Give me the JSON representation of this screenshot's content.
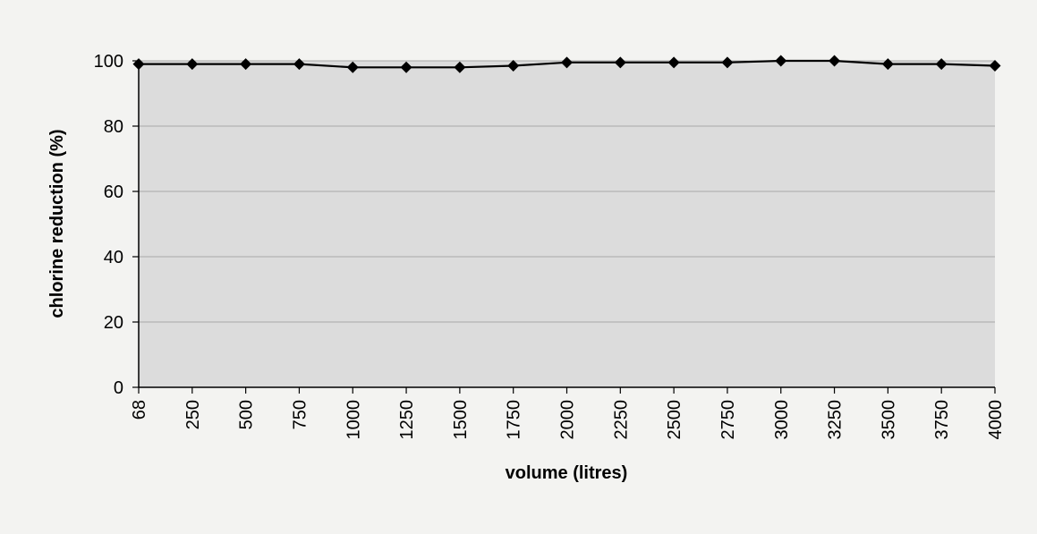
{
  "chart_data": {
    "type": "line",
    "title": "",
    "xlabel": "volume (litres)",
    "ylabel": "chlorine reduction (%)",
    "categories": [
      "68",
      "250",
      "500",
      "750",
      "1000",
      "1250",
      "1500",
      "1750",
      "2000",
      "2250",
      "2500",
      "2750",
      "3000",
      "3250",
      "3500",
      "3750",
      "4000"
    ],
    "series": [
      {
        "values": [
          99,
          99,
          99,
          99,
          98,
          98,
          98,
          98.5,
          99.5,
          99.5,
          99.5,
          99.5,
          100,
          100,
          99,
          99,
          98.5
        ]
      }
    ],
    "ylim": [
      0,
      100
    ],
    "yticks": [
      0,
      20,
      40,
      60,
      80,
      100
    ],
    "grid": true,
    "legend": "none",
    "colors": {
      "plot_background": "#dcdcdc",
      "gridline": "#a8a8a8",
      "line": "#000000",
      "marker": "#000000",
      "axis": "#000000",
      "page_background": "#f3f3f1"
    }
  }
}
